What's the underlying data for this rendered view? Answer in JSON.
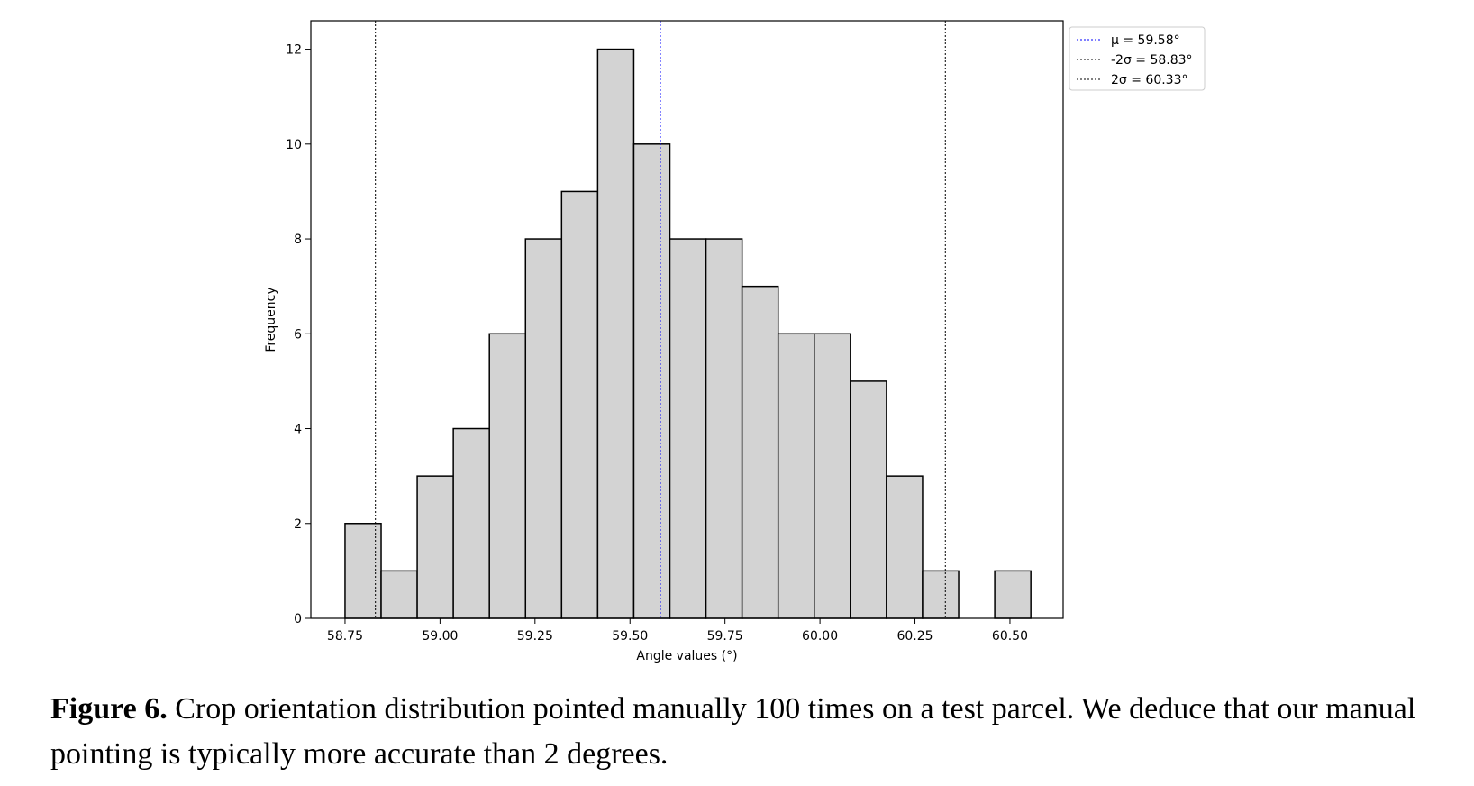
{
  "chart_data": {
    "type": "bar",
    "subtype": "histogram",
    "xlabel": "Angle values (°)",
    "ylabel": "Frequency",
    "xlim": [
      58.66,
      60.64
    ],
    "ylim": [
      0,
      12.6
    ],
    "x_ticks": [
      58.75,
      59.0,
      59.25,
      59.5,
      59.75,
      60.0,
      60.25,
      60.5
    ],
    "x_tick_labels": [
      "58.75",
      "59.00",
      "59.25",
      "59.50",
      "59.75",
      "60.00",
      "60.25",
      "60.50"
    ],
    "y_ticks": [
      0,
      2,
      4,
      6,
      8,
      10,
      12
    ],
    "y_tick_labels": [
      "0",
      "2",
      "4",
      "6",
      "8",
      "10",
      "12"
    ],
    "bin_start": 58.75,
    "bin_width": 0.095,
    "values": [
      2,
      1,
      3,
      4,
      6,
      8,
      9,
      12,
      10,
      8,
      8,
      7,
      6,
      6,
      5,
      3,
      1,
      0,
      1
    ],
    "bar_fill": "#d3d3d3",
    "bar_edge": "#000000",
    "reference_lines": [
      {
        "label": "μ = 59.58°",
        "x": 59.58,
        "color": "#0000ff"
      },
      {
        "label": "-2σ = 58.83°",
        "x": 58.83,
        "color": "#000000"
      },
      {
        "label": "2σ = 60.33°",
        "x": 60.33,
        "color": "#000000"
      }
    ],
    "legend_position": "outside-top-right",
    "grid": false
  },
  "caption": {
    "label": "Figure 6.",
    "text": " Crop orientation distribution pointed manually 100 times on a test parcel. We deduce that our manual pointing is typically more accurate than 2 degrees."
  }
}
